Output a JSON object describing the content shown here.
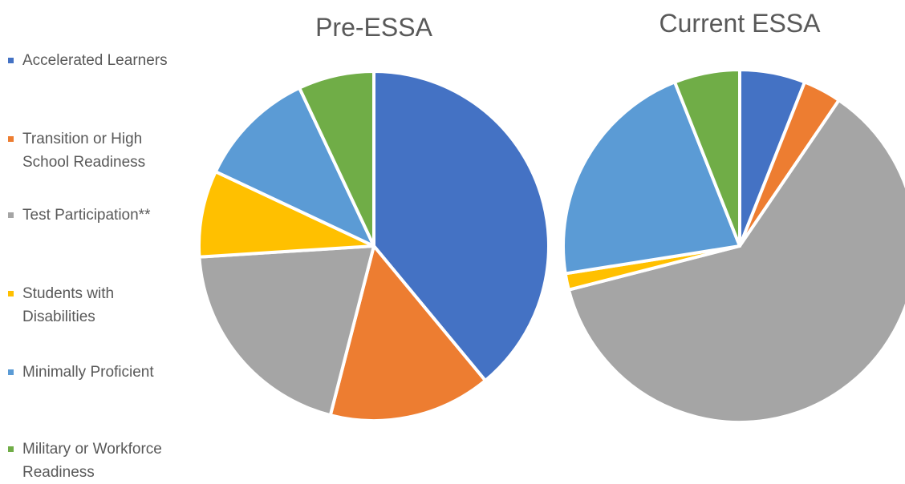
{
  "legend": {
    "items": [
      {
        "label": "Accelerated Learners",
        "color": "#4472C4"
      },
      {
        "label": "Transition or High\nSchool Readiness",
        "color": "#ED7D31"
      },
      {
        "label": "Test Participation**",
        "color": "#A5A5A5"
      },
      {
        "label": "Students with\nDisabilities",
        "color": "#FFC000"
      },
      {
        "label": "Minimally Proficient",
        "color": "#5B9BD5"
      },
      {
        "label": "Military or Workforce\nReadiness",
        "color": "#70AD47"
      }
    ]
  },
  "chart_data": [
    {
      "type": "pie",
      "title": "Pre-ESSA",
      "categories": [
        "Accelerated Learners",
        "Transition or High School Readiness",
        "Test Participation**",
        "Students with Disabilities",
        "Minimally Proficient",
        "Military or Workforce Readiness"
      ],
      "values": [
        39,
        15,
        20,
        8,
        11,
        7
      ],
      "colors": [
        "#4472C4",
        "#ED7D31",
        "#A5A5A5",
        "#FFC000",
        "#5B9BD5",
        "#70AD47"
      ]
    },
    {
      "type": "pie",
      "title": "Current ESSA",
      "categories": [
        "Accelerated Learners",
        "Transition or High School Readiness",
        "Test Participation**",
        "Students with Disabilities",
        "Minimally Proficient",
        "Military or Workforce Readiness"
      ],
      "values": [
        6,
        3.5,
        61.5,
        1.5,
        21.5,
        6
      ],
      "colors": [
        "#4472C4",
        "#ED7D31",
        "#A5A5A5",
        "#FFC000",
        "#5B9BD5",
        "#70AD47"
      ]
    }
  ]
}
